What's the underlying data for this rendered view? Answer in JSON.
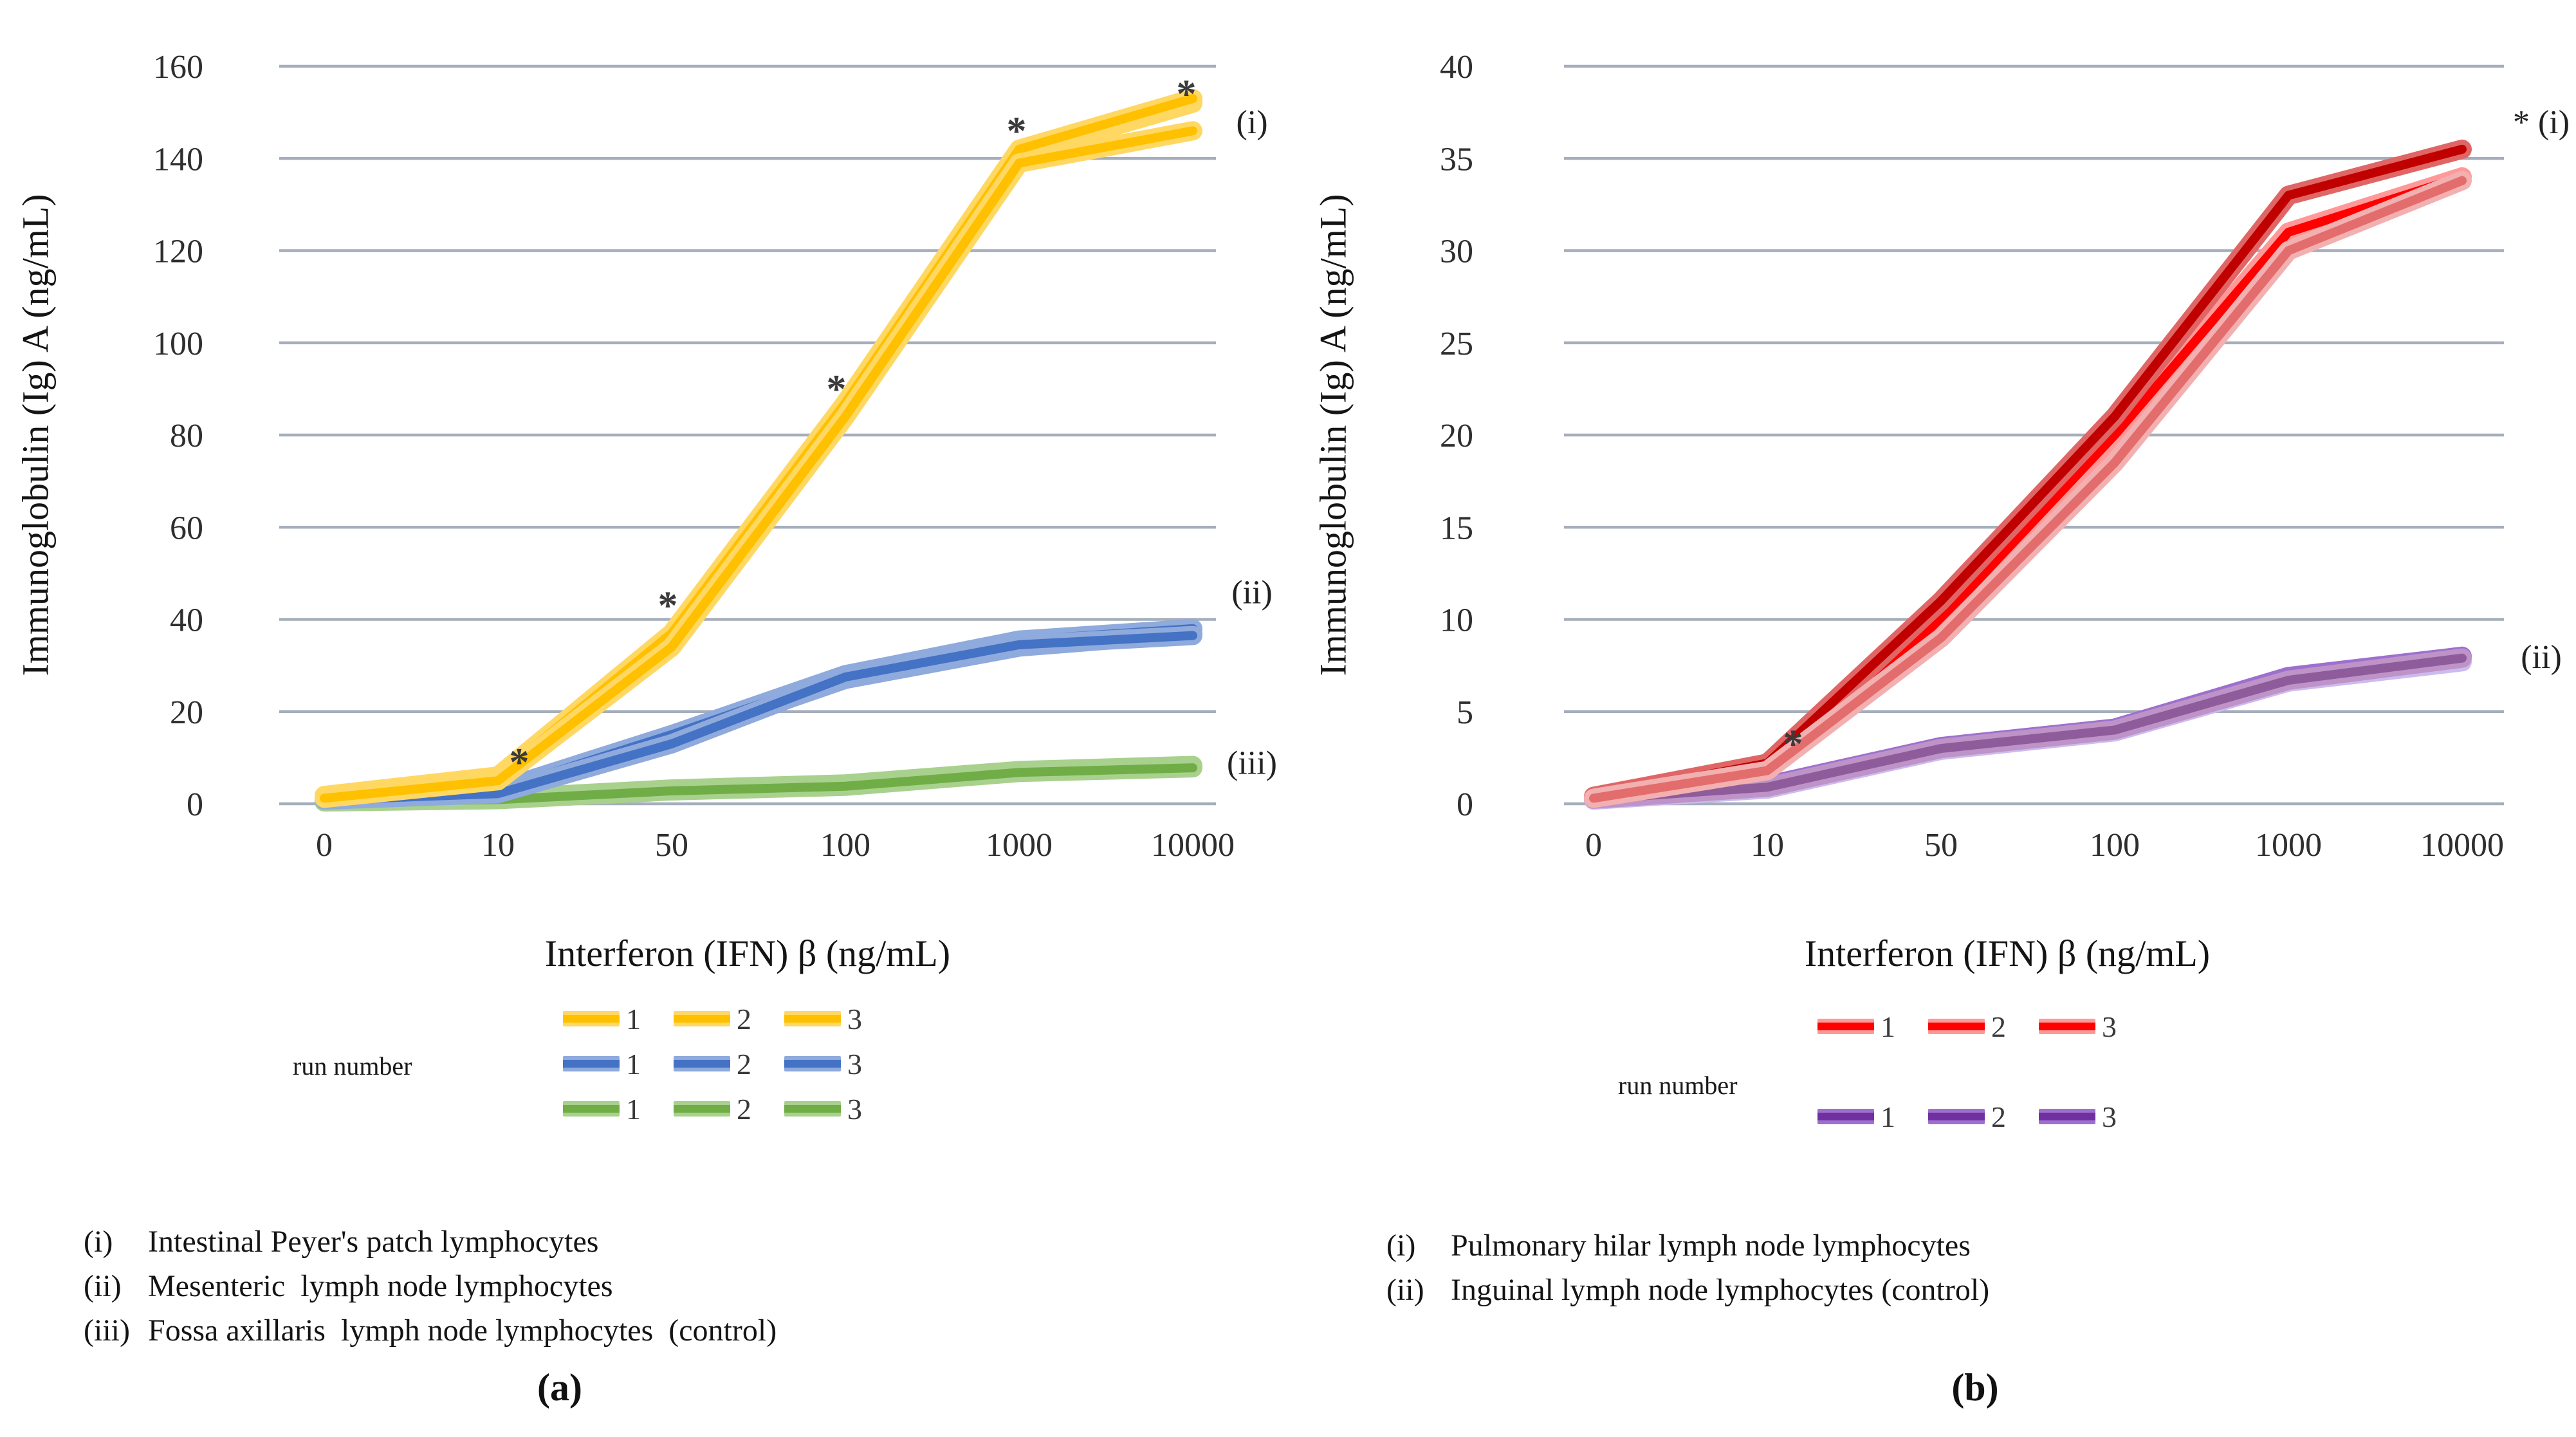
{
  "chart_data": [
    {
      "type": "line",
      "panel_label": "(a)",
      "xlabel": "Interferon (IFN) β (ng/mL)",
      "ylabel": "Immunoglobulin (Ig) A (ng/mL)",
      "categories": [
        "0",
        "10",
        "50",
        "100",
        "1000",
        "10000"
      ],
      "ylim": [
        0,
        160
      ],
      "ytick": 20,
      "grid": true,
      "grid_color": "#A6AEBB",
      "legend_position": "bottom",
      "series": [
        {
          "group": "(iii)",
          "run": "1",
          "color": "#70AD47",
          "halo": "#A9D18E",
          "values": [
            0.5,
            1.0,
            3.0,
            4.0,
            7.0,
            8.0
          ]
        },
        {
          "group": "(iii)",
          "run": "2",
          "color": "#70AD47",
          "halo": "#A9D18E",
          "values": [
            0.6,
            1.2,
            3.2,
            4.3,
            7.2,
            8.3
          ]
        },
        {
          "group": "(iii)",
          "run": "3",
          "color": "#70AD47",
          "halo": "#A9D18E",
          "values": [
            0.4,
            0.9,
            2.8,
            3.8,
            6.8,
            7.8
          ]
        },
        {
          "group": "(ii)",
          "run": "1",
          "color": "#4472C4",
          "halo": "#8FAADC",
          "values": [
            1.0,
            2.5,
            14.0,
            27.0,
            34.0,
            37.0
          ]
        },
        {
          "group": "(ii)",
          "run": "2",
          "color": "#4472C4",
          "halo": "#8FAADC",
          "values": [
            1.2,
            3.0,
            15.0,
            28.0,
            35.5,
            38.0
          ]
        },
        {
          "group": "(ii)",
          "run": "3",
          "color": "#4472C4",
          "halo": "#8FAADC",
          "values": [
            0.8,
            2.2,
            13.0,
            27.5,
            34.5,
            36.5
          ]
        },
        {
          "group": "(i)",
          "run": "1",
          "color": "#FFC000",
          "halo": "#FFD863",
          "values": [
            1.5,
            5.5,
            36.0,
            86.0,
            141.0,
            152.0
          ]
        },
        {
          "group": "(i)",
          "run": "2",
          "color": "#FFC000",
          "halo": "#FFD863",
          "values": [
            1.8,
            6.0,
            37.0,
            87.0,
            142.0,
            153.0
          ]
        },
        {
          "group": "(i)",
          "run": "3",
          "color": "#FFC000",
          "halo": "#FFD863",
          "values": [
            1.2,
            5.0,
            34.0,
            84.0,
            139.0,
            146.0
          ]
        }
      ],
      "annotations": [
        {
          "symbol": "*",
          "ci": 1,
          "v": 12,
          "dx": 33
        },
        {
          "symbol": "*",
          "ci": 2,
          "v": 46,
          "dx": -6
        },
        {
          "symbol": "*",
          "ci": 3,
          "v": 93,
          "dx": -14
        },
        {
          "symbol": "*",
          "ci": 4,
          "v": 149,
          "dx": -4
        },
        {
          "symbol": "*",
          "ci": 5,
          "v": 157,
          "dx": -10
        }
      ],
      "side_labels": [
        {
          "text": "(i)",
          "v": 148
        },
        {
          "text": "(ii)",
          "v": 46
        },
        {
          "text": "(iii)",
          "v": 9
        }
      ],
      "legend": {
        "label": "run number",
        "groups": [
          {
            "color": "#FFC000",
            "halo": "#FFD863",
            "items": [
              "1",
              "2",
              "3"
            ]
          },
          {
            "color": "#4472C4",
            "halo": "#8FAADC",
            "items": [
              "1",
              "2",
              "3"
            ]
          },
          {
            "color": "#70AD47",
            "halo": "#A9D18E",
            "items": [
              "1",
              "2",
              "3"
            ]
          }
        ]
      },
      "footnotes": [
        {
          "marker": "(i)",
          "text": "Intestinal Peyer's patch lymphocytes"
        },
        {
          "marker": "(ii)",
          "text": "Mesenteric  lymph node lymphocytes"
        },
        {
          "marker": "(iii)",
          "text": "Fossa axillaris  lymph node lymphocytes  (control)"
        }
      ]
    },
    {
      "type": "line",
      "panel_label": "(b)",
      "xlabel": "Interferon (IFN) β (ng/mL)",
      "ylabel": "Immunoglobulin (Ig) A (ng/mL)",
      "categories": [
        "0",
        "10",
        "50",
        "100",
        "1000",
        "10000"
      ],
      "ylim": [
        0,
        40
      ],
      "ytick": 5,
      "grid": true,
      "grid_color": "#A6AEBB",
      "legend_position": "bottom",
      "series": [
        {
          "group": "(ii)",
          "run": "1",
          "color": "#9E7BD9",
          "halo": "#CDBBF0",
          "values": [
            0.2,
            0.8,
            2.9,
            3.9,
            6.6,
            7.7
          ]
        },
        {
          "group": "(ii)",
          "run": "2",
          "color": "#7030A0",
          "halo": "#9E6FCE",
          "values": [
            0.3,
            1.0,
            3.1,
            4.1,
            6.9,
            8.0
          ]
        },
        {
          "group": "(ii)",
          "run": "3",
          "color": "#8E5C9B",
          "halo": "#BE93C8",
          "values": [
            0.25,
            0.9,
            3.0,
            4.0,
            6.7,
            7.9
          ]
        },
        {
          "group": "(i)",
          "run": "1",
          "color": "#FF0000",
          "halo": "#FF9999",
          "values": [
            0.3,
            2.0,
            10.0,
            20.0,
            31.0,
            34.0
          ]
        },
        {
          "group": "(i)",
          "run": "2",
          "color": "#C00000",
          "halo": "#E06666",
          "values": [
            0.4,
            2.2,
            11.0,
            21.0,
            33.0,
            35.5
          ]
        },
        {
          "group": "(i)",
          "run": "3",
          "color": "#E36C6C",
          "halo": "#F3B0B0",
          "values": [
            0.3,
            1.8,
            9.0,
            18.5,
            30.0,
            33.8
          ]
        }
      ],
      "annotations": [
        {
          "symbol": "*",
          "ci": 1,
          "v": 4,
          "dx": 40
        }
      ],
      "side_labels": [
        {
          "text": "* (i)",
          "v": 37
        },
        {
          "text": "(ii)",
          "v": 8
        }
      ],
      "legend": {
        "label": "run number",
        "groups": [
          {
            "color": "#FF0000",
            "halo": "#FF9999",
            "items": [
              "1",
              "2",
              "3"
            ]
          },
          {
            "color": "#7030A0",
            "halo": "#9E6FCE",
            "items": [
              "1",
              "2",
              "3"
            ]
          }
        ]
      },
      "footnotes": [
        {
          "marker": "(i)",
          "text": "Pulmonary hilar lymph node lymphocytes"
        },
        {
          "marker": "(ii)",
          "text": "Inguinal lymph node lymphocytes (control)"
        }
      ]
    }
  ]
}
